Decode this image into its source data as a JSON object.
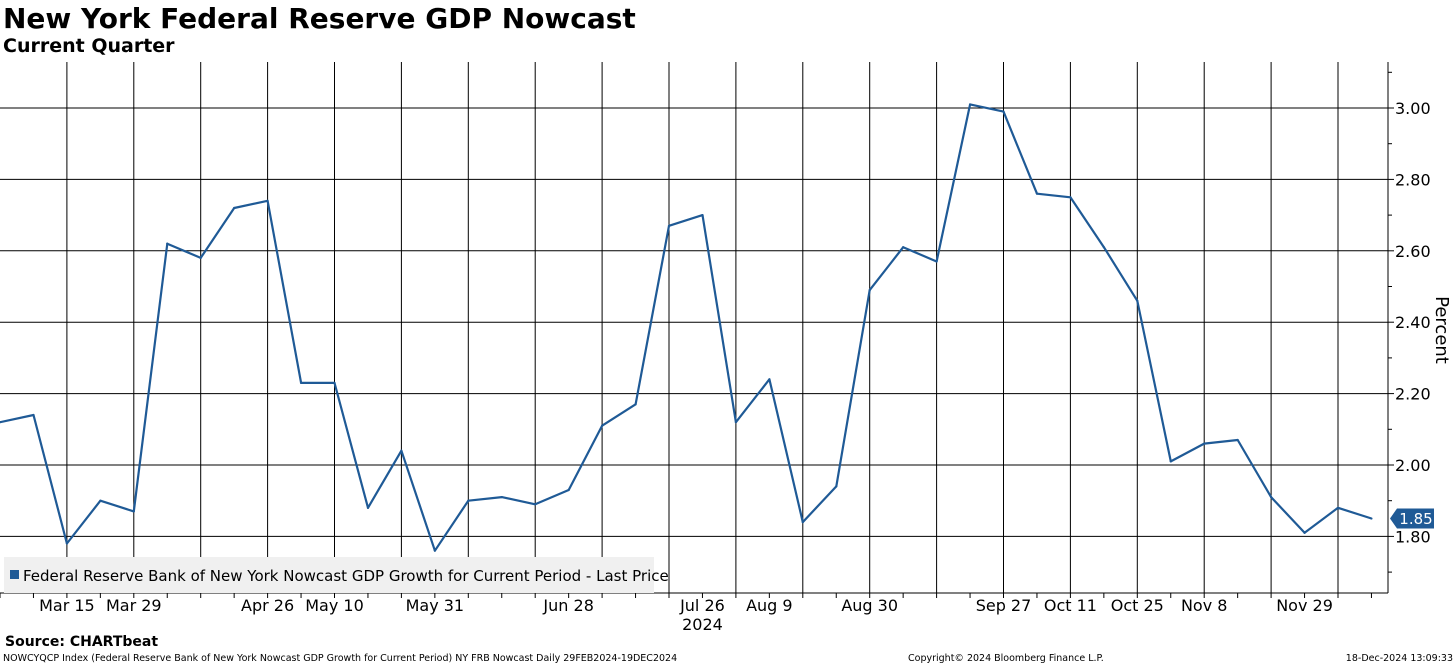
{
  "header": {
    "title": "New York Federal Reserve GDP Nowcast",
    "subtitle": "Current Quarter"
  },
  "chart_data": {
    "type": "line",
    "title": "New York Federal Reserve GDP Nowcast",
    "subtitle": "Current Quarter",
    "xlabel": "",
    "ylabel": "Percent",
    "ylim": [
      1.67,
      3.13
    ],
    "yticks": [
      1.8,
      2.0,
      2.2,
      2.4,
      2.6,
      2.8,
      3.0
    ],
    "ytick_labels": [
      "1.80",
      "2.00",
      "2.20",
      "2.40",
      "2.60",
      "2.80",
      "3.00"
    ],
    "grid": true,
    "year_label": "2024",
    "xtick_labels": [
      "Mar 15",
      "Mar 29",
      "Apr 26",
      "May 10",
      "May 31",
      "Jun 28",
      "Jul 26",
      "Aug 9",
      "Aug 30",
      "Sep 27",
      "Oct 11",
      "Oct 25",
      "Nov 8",
      "Nov 29"
    ],
    "xtick_index": [
      2,
      4,
      8,
      10,
      13,
      17,
      21,
      23,
      26,
      30,
      32,
      34,
      36,
      39
    ],
    "series": [
      {
        "name": "Federal Reserve Bank of New York Nowcast GDP Growth for Current Period - Last Price",
        "color": "#1f5a96",
        "x": [
          "Mar 1",
          "Mar 8",
          "Mar 15",
          "Mar 22",
          "Mar 29",
          "Apr 5",
          "Apr 12",
          "Apr 19",
          "Apr 26",
          "May 3",
          "May 10",
          "May 17",
          "May 24",
          "May 31",
          "Jun 7",
          "Jun 14",
          "Jun 21",
          "Jun 28",
          "Jul 5",
          "Jul 12",
          "Jul 19",
          "Jul 26",
          "Aug 2",
          "Aug 9",
          "Aug 16",
          "Aug 23",
          "Aug 30",
          "Sep 6",
          "Sep 13",
          "Sep 20",
          "Sep 27",
          "Oct 4",
          "Oct 11",
          "Oct 18",
          "Oct 25",
          "Nov 1",
          "Nov 8",
          "Nov 15",
          "Nov 22",
          "Nov 29",
          "Dec 6",
          "Dec 13"
        ],
        "values": [
          2.12,
          2.14,
          1.78,
          1.9,
          1.87,
          2.62,
          2.58,
          2.72,
          2.74,
          2.23,
          2.23,
          1.88,
          2.04,
          1.76,
          1.9,
          1.91,
          1.89,
          1.93,
          2.11,
          2.17,
          2.67,
          2.7,
          2.12,
          2.24,
          1.84,
          1.94,
          2.49,
          2.61,
          2.57,
          3.01,
          2.99,
          2.76,
          2.75,
          2.61,
          2.46,
          2.01,
          2.06,
          2.07,
          1.91,
          1.81,
          1.88,
          1.85
        ]
      }
    ],
    "last_value_label": "1.85",
    "legend": {
      "placement": "bottom-left",
      "entries": [
        "Federal Reserve Bank of New York Nowcast GDP Growth for Current Period - Last Price"
      ]
    }
  },
  "footer": {
    "source": "Source: CHARTbeat",
    "index_info": "NOWCYQCP Index (Federal Reserve Bank of New York Nowcast GDP Growth for Current Period) NY FRB Nowcast  Daily 29FEB2024-19DEC2024",
    "copyright": "Copyright© 2024 Bloomberg Finance L.P.",
    "timestamp": "18-Dec-2024 13:09:33"
  }
}
